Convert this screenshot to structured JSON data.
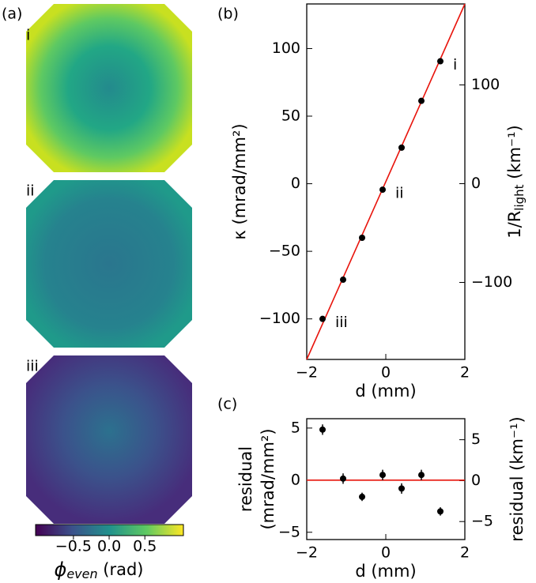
{
  "panel_a": {
    "label": "(a)",
    "images": [
      "i",
      "ii",
      "iii"
    ],
    "colorbar": {
      "clim": [
        -1.03,
        1.04
      ],
      "ticks": [
        {
          "value": -0.5,
          "label": "−0.5"
        },
        {
          "value": 0,
          "label": "0.0"
        },
        {
          "value": 0.5,
          "label": "0.5"
        }
      ],
      "label": {
        "symbol": "ϕ",
        "sub": "even",
        "unit": " (rad)"
      }
    }
  },
  "chart_data": [
    {
      "type": "scatter",
      "panel_label": "(b)",
      "xlabel": "d (mm)",
      "ylabel": "κ (mrad/mm²)",
      "y2label": {
        "text": "1/R",
        "sub": "light",
        "unit": " (km⁻¹)"
      },
      "x": [
        -1.6,
        -1.08,
        -0.6,
        -0.08,
        0.4,
        0.9,
        1.38
      ],
      "values": [
        -100,
        -71,
        -40,
        -4.4,
        26.7,
        61.3,
        90.6
      ],
      "point_labels": [
        "iii",
        null,
        null,
        "ii",
        null,
        null,
        "i"
      ],
      "color": "#000000",
      "fit": {
        "x": [
          -2,
          2
        ],
        "values": [
          -130,
          133
        ],
        "color": "#e8140c"
      },
      "xlim": [
        -2,
        2
      ],
      "xticks": [
        {
          "value": -2,
          "label": "−2"
        },
        0,
        2
      ],
      "ylim": [
        -130,
        133
      ],
      "yticks": [
        {
          "value": -100,
          "label": "−100"
        },
        {
          "value": -50,
          "label": "−50"
        },
        0,
        50,
        100
      ],
      "y2lim": [
        -178,
        182
      ],
      "y2ticks": [
        {
          "value": -100,
          "label": "−100"
        },
        0,
        100
      ]
    },
    {
      "type": "scatter",
      "panel_label": "(c)",
      "xlabel": "d (mm)",
      "ylabel": [
        "residual",
        "(mrad/mm²)"
      ],
      "y2label": "residual (km⁻¹)",
      "x": [
        -1.6,
        -1.08,
        -0.6,
        -0.08,
        0.4,
        0.9,
        1.38
      ],
      "values": [
        4.85,
        0.15,
        -1.6,
        0.5,
        -0.8,
        0.5,
        -3.0
      ],
      "errors": [
        0.5,
        0.5,
        0.4,
        0.5,
        0.5,
        0.5,
        0.4
      ],
      "color": "#000000",
      "fit": {
        "x": [
          -2,
          2
        ],
        "values": [
          0,
          0
        ],
        "color": "#e8140c"
      },
      "xlim": [
        -2,
        2
      ],
      "xticks": [
        {
          "value": -2,
          "label": "−2"
        },
        0,
        2
      ],
      "ylim": [
        -5.7,
        5.9
      ],
      "yticks": [
        {
          "value": -5,
          "label": "−5"
        },
        0,
        5
      ],
      "y2lim": [
        -7.2,
        7.57
      ],
      "y2ticks": [
        {
          "value": -5,
          "label": "−5"
        },
        0,
        5
      ]
    }
  ]
}
